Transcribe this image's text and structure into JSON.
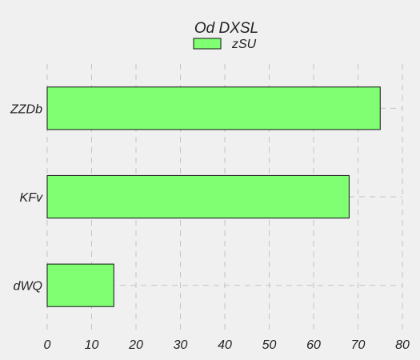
{
  "chart_data": {
    "type": "bar",
    "orientation": "horizontal",
    "title": "Od DXSL",
    "categories": [
      "ZZDb",
      "KFv",
      "dWQ"
    ],
    "series": [
      {
        "name": "zSU",
        "values": [
          75,
          68,
          15
        ],
        "color": "#80ff73"
      }
    ],
    "xlim": [
      0,
      80
    ],
    "xticks": [
      "0",
      "10",
      "20",
      "30",
      "40",
      "50",
      "60",
      "70",
      "80"
    ],
    "grid": true,
    "legend_position": "top-center",
    "background": "#f0f0f0"
  }
}
